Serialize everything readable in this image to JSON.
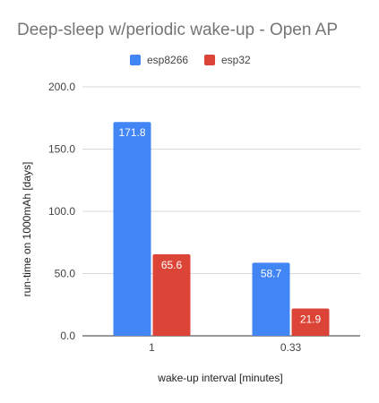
{
  "chart_data": {
    "type": "bar",
    "title": "Deep-sleep w/periodic wake-up - Open AP",
    "xlabel": "wake-up interval [minutes]",
    "ylabel": "run-time on 1000mAh [days]",
    "categories": [
      "1",
      "0.33"
    ],
    "series": [
      {
        "name": "esp8266",
        "color": "#4285f4",
        "values": [
          171.8,
          58.7
        ]
      },
      {
        "name": "esp32",
        "color": "#db4437",
        "values": [
          65.6,
          21.9
        ]
      }
    ],
    "data_labels": [
      [
        "171.8",
        "58.7"
      ],
      [
        "65.6",
        "21.9"
      ]
    ],
    "ylim": [
      0,
      200
    ],
    "yticks": [
      0,
      50,
      100,
      150,
      200
    ],
    "ytick_labels": [
      "0.0",
      "50.0",
      "100.0",
      "150.0",
      "200.0"
    ],
    "grid": true,
    "legend_position": "top"
  }
}
